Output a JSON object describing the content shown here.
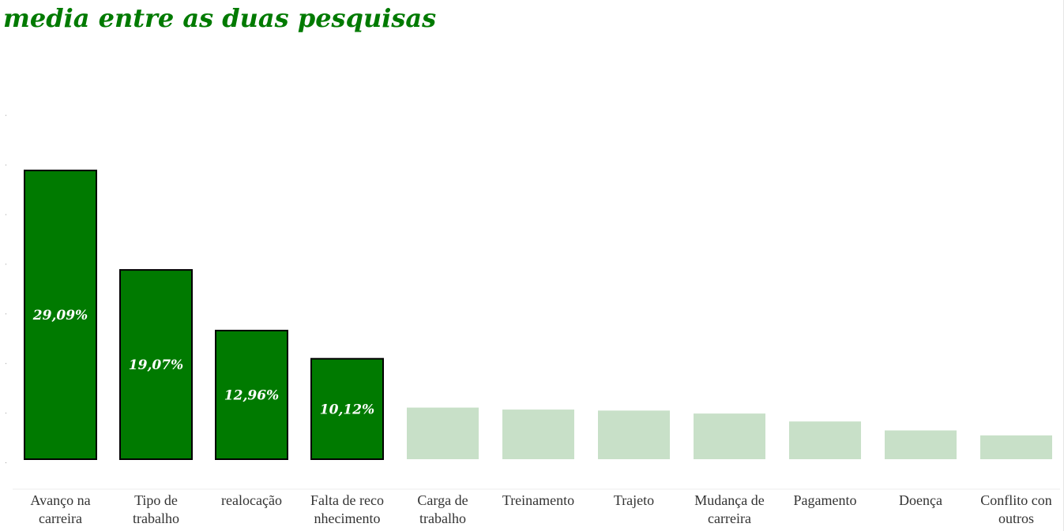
{
  "chart_data": {
    "type": "bar",
    "title": "media entre as duas pesquisas",
    "xlabel": "",
    "ylabel": "",
    "ylim": [
      0,
      35
    ],
    "categories": [
      [
        "Avanço na",
        "carreira"
      ],
      [
        "Tipo de",
        "trabalho"
      ],
      [
        "realocação"
      ],
      [
        "Falta de reco",
        "nhecimento"
      ],
      [
        "Carga de",
        "trabalho"
      ],
      [
        "Treinamento"
      ],
      [
        "Trajeto"
      ],
      [
        "Mudança de",
        "carreira"
      ],
      [
        "Pagamento"
      ],
      [
        "Doença"
      ],
      [
        "Conflito con",
        "outros"
      ]
    ],
    "values": [
      29.09,
      19.07,
      12.96,
      10.12,
      5.2,
      5.0,
      4.9,
      4.6,
      3.8,
      2.9,
      2.4
    ],
    "value_labels": [
      "29,09%",
      "19,07%",
      "12,96%",
      "10,12%",
      "",
      "",
      "",
      "",
      "",
      "",
      ""
    ],
    "highlighted": [
      true,
      true,
      true,
      true,
      false,
      false,
      false,
      false,
      false,
      false,
      false
    ],
    "colors": {
      "highlight": "#007a00",
      "muted": "#c8e0c8",
      "title": "#007a00",
      "outline": "#000000"
    }
  }
}
